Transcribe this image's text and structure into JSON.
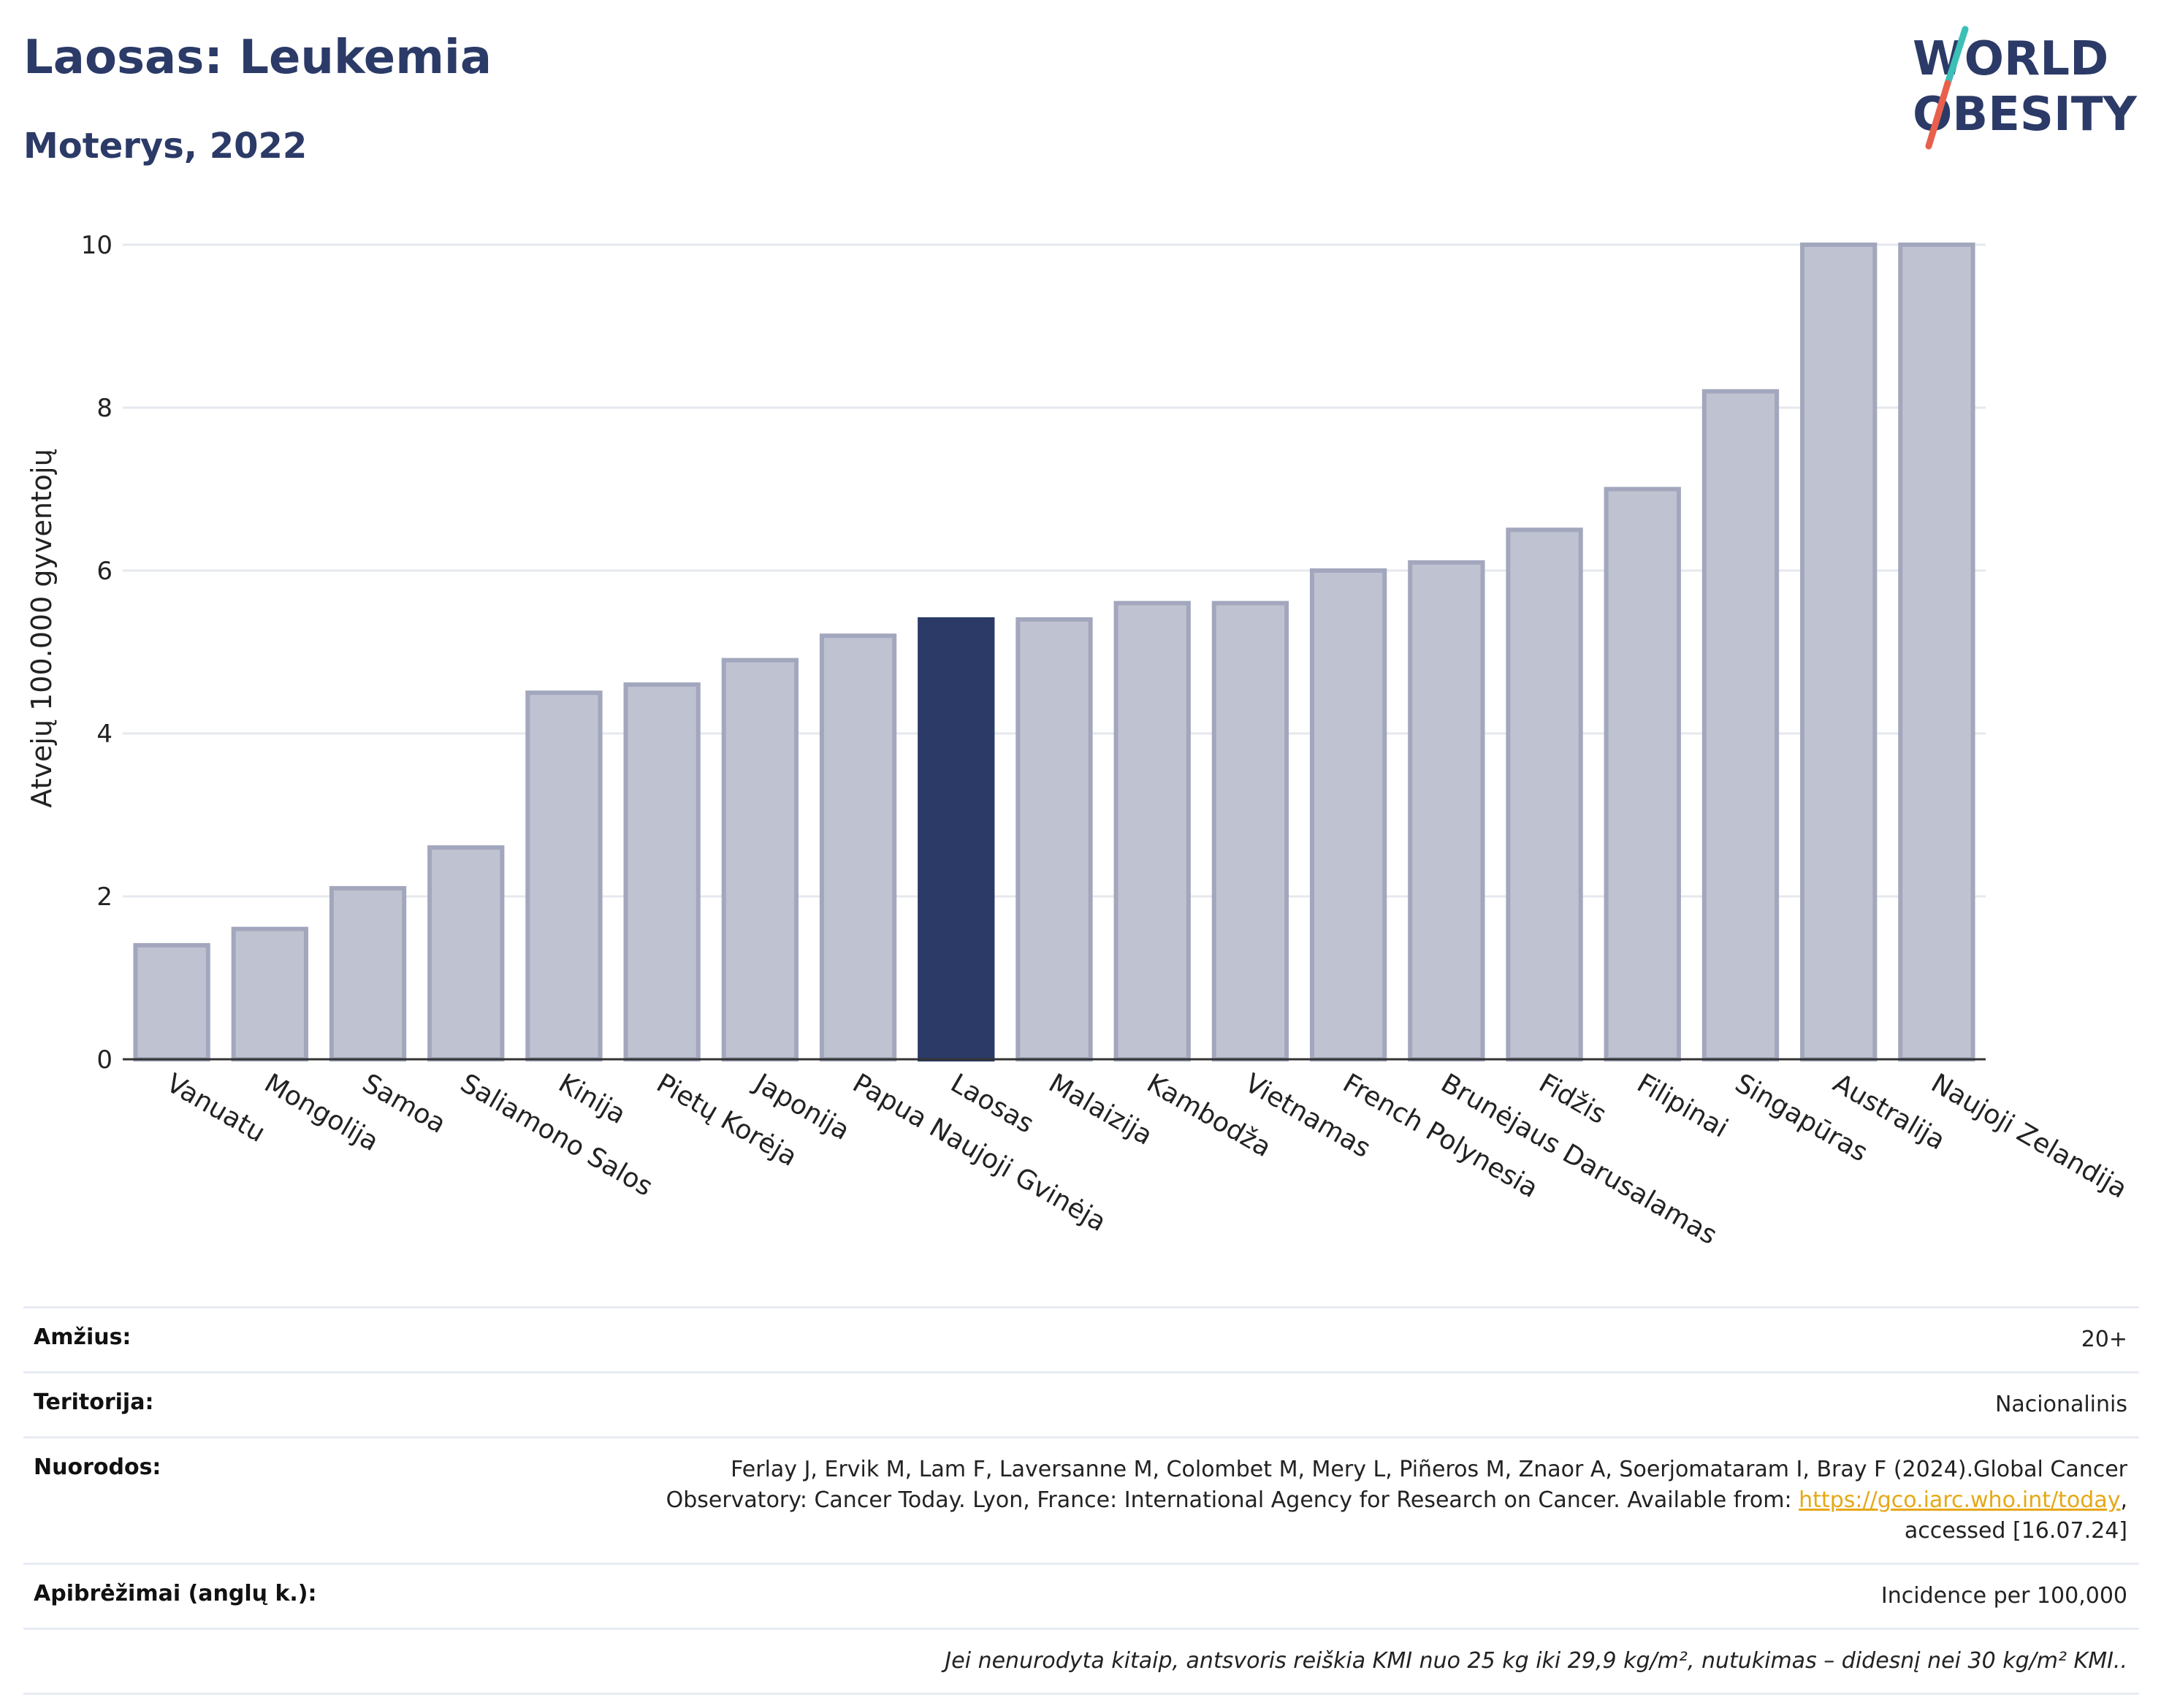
{
  "header": {
    "title": "Laosas: Leukemia",
    "subtitle": "Moterys, 2022"
  },
  "logo": {
    "line1": "WORLD",
    "line2": "OBESITY",
    "color": "#2b3a67",
    "accent_teal": "#3bbfb7",
    "accent_red": "#e8604c"
  },
  "colors": {
    "bar": "#bfc2d0",
    "bar_stroke": "#a3a7bd",
    "highlight": "#2b3a67",
    "grid": "#e6e8ef"
  },
  "chart_data": {
    "type": "bar",
    "title": "",
    "xlabel": "",
    "ylabel": "Atvejų 100.000 gyventojų",
    "ylim": [
      0,
      10
    ],
    "yticks": [
      0,
      2,
      4,
      6,
      8,
      10
    ],
    "grid": true,
    "highlight": "Laosas",
    "categories": [
      "Vanuatu",
      "Mongolija",
      "Samoa",
      "Saliamono Salos",
      "Kinija",
      "Pietų Korėja",
      "Japonija",
      "Papua Naujoji Gvinėja",
      "Laosas",
      "Malaizija",
      "Kambodža",
      "Vietnamas",
      "French Polynesia",
      "Brunėjaus Darusalamas",
      "Fidžis",
      "Filipinai",
      "Singapūras",
      "Australija",
      "Naujoji Zelandija"
    ],
    "values": [
      1.4,
      1.6,
      2.1,
      2.6,
      4.5,
      4.6,
      4.9,
      5.2,
      5.4,
      5.4,
      5.6,
      5.6,
      6.0,
      6.1,
      6.5,
      7.0,
      8.2,
      10.0,
      10.0
    ]
  },
  "info": {
    "age_label": "Amžius:",
    "age_value": "20+",
    "territory_label": "Teritorija:",
    "territory_value": "Nacionalinis",
    "refs_label": "Nuorodos:",
    "refs_text_1": "Ferlay J, Ervik M, Lam F, Laversanne M, Colombet M, Mery L, Piñeros M, Znaor A, Soerjomataram I, Bray F (2024).Global Cancer",
    "refs_text_2": "Observatory: Cancer Today. Lyon, France: International Agency for Research on Cancer. Available from: ",
    "refs_link": "https://gco.iarc.who.int/today",
    "refs_text_3": ",",
    "refs_text_4": "accessed [16.07.24]",
    "definitions_label": "Apibrėžimai (anglų k.):",
    "definitions_value": "Incidence per 100,000",
    "note": "Jei nenurodyta kitaip, antsvoris reiškia KMI nuo 25 kg iki 29,9 kg/m², nutukimas – didesnį nei 30 kg/m² KMI.."
  }
}
